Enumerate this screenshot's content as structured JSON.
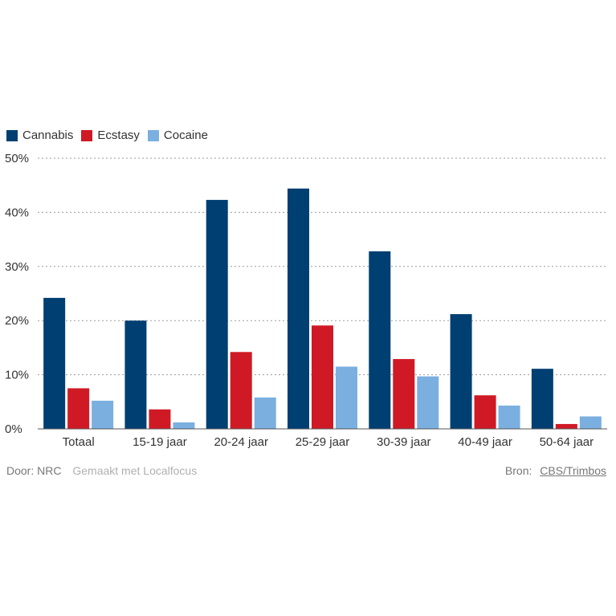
{
  "chart_data": {
    "type": "bar",
    "categories": [
      "Totaal",
      "15-19 jaar",
      "20-24 jaar",
      "25-29 jaar",
      "30-39 jaar",
      "40-49 jaar",
      "50-64 jaar"
    ],
    "series": [
      {
        "name": "Cannabis",
        "color": "#003f72",
        "values": [
          24.2,
          20.0,
          42.3,
          44.4,
          32.8,
          21.2,
          11.1
        ]
      },
      {
        "name": "Ecstasy",
        "color": "#cf1a25",
        "values": [
          7.5,
          3.6,
          14.2,
          19.1,
          12.9,
          6.2,
          0.9
        ]
      },
      {
        "name": "Cocaine",
        "color": "#7aafe0",
        "values": [
          5.2,
          1.2,
          5.8,
          11.5,
          9.7,
          4.3,
          2.3
        ]
      }
    ],
    "ylim": [
      0,
      50
    ],
    "yticks": [
      0,
      10,
      20,
      30,
      40,
      50
    ],
    "ytick_labels": [
      "0%",
      "10%",
      "20%",
      "30%",
      "40%",
      "50%"
    ],
    "grid": true,
    "legend_position": "top-left"
  },
  "footer": {
    "author": "Door: NRC",
    "made_with": "Gemaakt met Localfocus",
    "source_label": "Bron:",
    "source_link": "CBS/Trimbos"
  }
}
